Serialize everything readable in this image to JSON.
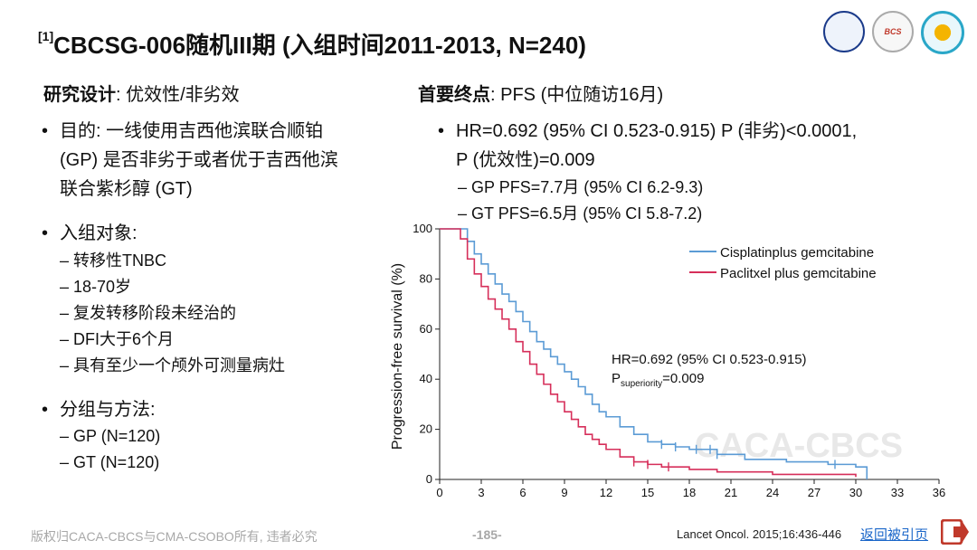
{
  "title": {
    "ref": "[1]",
    "text": "CBCSG-006随机III期 (入组时间2011-2013, N=240)"
  },
  "logos": [
    "",
    "BCS",
    ""
  ],
  "left": {
    "heading_bold": "研究设计",
    "heading_rest": ": 优效性/非劣效",
    "purpose_l1": "目的: 一线使用吉西他滨联合顺铂",
    "purpose_l2": "(GP) 是否非劣于或者优于吉西他滨",
    "purpose_l3": "联合紫杉醇 (GT)",
    "subjects_h": "入组对象:",
    "subjects": [
      "转移性TNBC",
      "18-70岁",
      "复发转移阶段未经治的",
      "DFI大于6个月",
      "具有至少一个颅外可测量病灶"
    ],
    "groups_h": "分组与方法:",
    "groups": [
      "GP (N=120)",
      "GT (N=120)"
    ]
  },
  "right": {
    "heading_bold": "首要终点",
    "heading_rest": ": PFS (中位随访16月)",
    "hr_l1": "HR=0.692 (95% CI 0.523-0.915) P (非劣)<0.0001,",
    "hr_l2": "P (优效性)=0.009",
    "subs": [
      "GP PFS=7.7月 (95% CI 6.2-9.3)",
      "GT PFS=6.5月 (95% CI 5.8-7.2)"
    ]
  },
  "chart_data": {
    "type": "line",
    "ylabel": "Progression-free survival (%)",
    "xlabel": "",
    "xlim": [
      0,
      36
    ],
    "ylim": [
      0,
      100
    ],
    "xticks": [
      0,
      3,
      6,
      9,
      12,
      15,
      18,
      21,
      24,
      27,
      30,
      33,
      36
    ],
    "yticks": [
      0,
      20,
      40,
      60,
      80,
      100
    ],
    "annotation_l1": "HR=0.692 (95% CI 0.523-0.915)",
    "annotation_p": "P",
    "annotation_sub": "superiority",
    "annotation_val": "=0.009",
    "watermark": "CACA-CBCS",
    "legend_position": "top-right",
    "series": [
      {
        "name": "Cisplatinplus gemcitabine",
        "color": "#5b9bd5",
        "x": [
          0,
          1.5,
          2,
          2.5,
          3,
          3.5,
          4,
          4.5,
          5,
          5.5,
          6,
          6.5,
          7,
          7.5,
          8,
          8.5,
          9,
          9.5,
          10,
          10.5,
          11,
          11.5,
          12,
          13,
          14,
          15,
          16,
          17,
          18,
          20,
          22,
          25,
          28,
          30,
          30.3,
          30.8
        ],
        "y": [
          100,
          100,
          95,
          90,
          86,
          82,
          78,
          74,
          71,
          67,
          63,
          59,
          55,
          52,
          49,
          46,
          43,
          40,
          37,
          34,
          30,
          27,
          25,
          21,
          18,
          15,
          14,
          13,
          12,
          10,
          8,
          7,
          6,
          5,
          5,
          0
        ]
      },
      {
        "name": "Paclitxel plus gemcitabine",
        "color": "#d62f5a",
        "x": [
          0,
          1.5,
          2,
          2.5,
          3,
          3.5,
          4,
          4.5,
          5,
          5.5,
          6,
          6.5,
          7,
          7.5,
          8,
          8.5,
          9,
          9.5,
          10,
          10.5,
          11,
          11.5,
          12,
          13,
          14,
          15,
          16,
          18,
          20,
          24,
          28,
          30
        ],
        "y": [
          100,
          96,
          88,
          82,
          77,
          72,
          68,
          64,
          60,
          55,
          51,
          46,
          42,
          38,
          34,
          31,
          27,
          24,
          21,
          18,
          16,
          14,
          12,
          9,
          7,
          6,
          5,
          4,
          3,
          2,
          2,
          1
        ]
      }
    ],
    "censor_gp": [
      16,
      17,
      18.5,
      19.5,
      20,
      28.5
    ],
    "censor_gt": [
      14,
      15,
      16.5
    ]
  },
  "footer": {
    "copyright": "版权归CACA-CBCS与CMA-CSOBO所有, 违者必究",
    "page": "-185-",
    "reference": "Lancet Oncol. 2015;16:436-446",
    "back_link": "返回被引页"
  }
}
